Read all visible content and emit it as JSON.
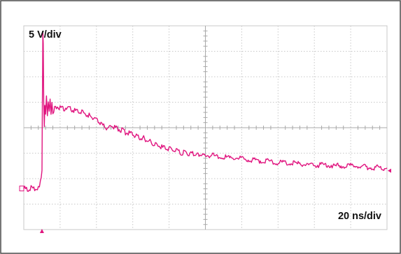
{
  "chart_data": {
    "type": "line",
    "title": "",
    "xlabel": "",
    "ylabel": "",
    "vertical_scale_label": "5 V/div",
    "horizontal_scale_label": "20 ns/div",
    "grid": true,
    "divisions": {
      "x": 10,
      "y": 8
    },
    "vertical_scale": 5,
    "horizontal_scale": 20,
    "xlim": [
      0,
      200
    ],
    "ylim": [
      -20,
      20
    ],
    "trigger_time": 10,
    "ground_reference": -12,
    "series": [
      {
        "color": "#e0157f",
        "x": [
          0,
          2,
          4,
          6,
          8,
          8.6,
          9.2,
          9.6,
          10.0,
          10.2,
          10.35,
          10.5,
          10.7,
          11.0,
          11.3,
          11.6,
          12.0,
          12.5,
          13.0,
          13.5,
          14.0,
          14.5,
          15.0,
          15.5,
          16.0,
          17,
          18,
          19,
          20,
          22,
          24,
          26,
          28,
          30,
          32,
          34,
          36,
          38,
          40,
          42,
          44,
          46,
          48,
          50,
          52,
          54,
          56,
          58,
          60,
          62,
          64,
          66,
          68,
          70,
          72,
          74,
          76,
          78,
          80,
          82,
          84,
          86,
          88,
          90,
          92,
          94,
          96,
          98,
          100,
          104,
          108,
          112,
          116,
          120,
          124,
          128,
          132,
          136,
          140,
          144,
          148,
          152,
          156,
          160,
          164,
          168,
          172,
          176,
          180,
          184,
          188,
          192,
          196,
          200
        ],
        "y": [
          -12.0,
          -12.0,
          -11.9,
          -12.1,
          -11.9,
          -11.5,
          -10.5,
          -9.5,
          -8.5,
          4.5,
          11.0,
          19.0,
          16.0,
          5.5,
          0.5,
          4.0,
          3.0,
          5.8,
          2.5,
          4.8,
          3.5,
          5.5,
          3.0,
          4.5,
          3.2,
          3.8,
          4.2,
          3.6,
          4.0,
          3.8,
          3.9,
          3.7,
          3.4,
          3.2,
          3.0,
          2.6,
          2.4,
          1.9,
          1.5,
          1.0,
          0.3,
          -0.2,
          0.4,
          0.0,
          -0.3,
          -0.5,
          -0.9,
          -1.1,
          -1.2,
          -1.7,
          -1.9,
          -2.1,
          -2.3,
          -2.8,
          -3.3,
          -3.5,
          -3.8,
          -4.1,
          -4.2,
          -4.4,
          -4.6,
          -4.8,
          -4.9,
          -4.9,
          -5.1,
          -5.2,
          -5.3,
          -5.4,
          -5.4,
          -5.5,
          -5.7,
          -5.9,
          -5.9,
          -6.1,
          -6.3,
          -6.4,
          -6.5,
          -6.7,
          -6.8,
          -6.9,
          -7.0,
          -7.2,
          -7.3,
          -7.4,
          -7.3,
          -7.3,
          -7.5,
          -7.5,
          -7.4,
          -7.6,
          -7.7,
          -7.8,
          -7.8,
          -7.9
        ]
      }
    ]
  },
  "colors": {
    "trace": "#e0157f",
    "grid": "#c8c8c8",
    "axis": "#a8a8a8",
    "frame": "#4a4a4a",
    "text": "#111111",
    "background": "#ffffff"
  }
}
